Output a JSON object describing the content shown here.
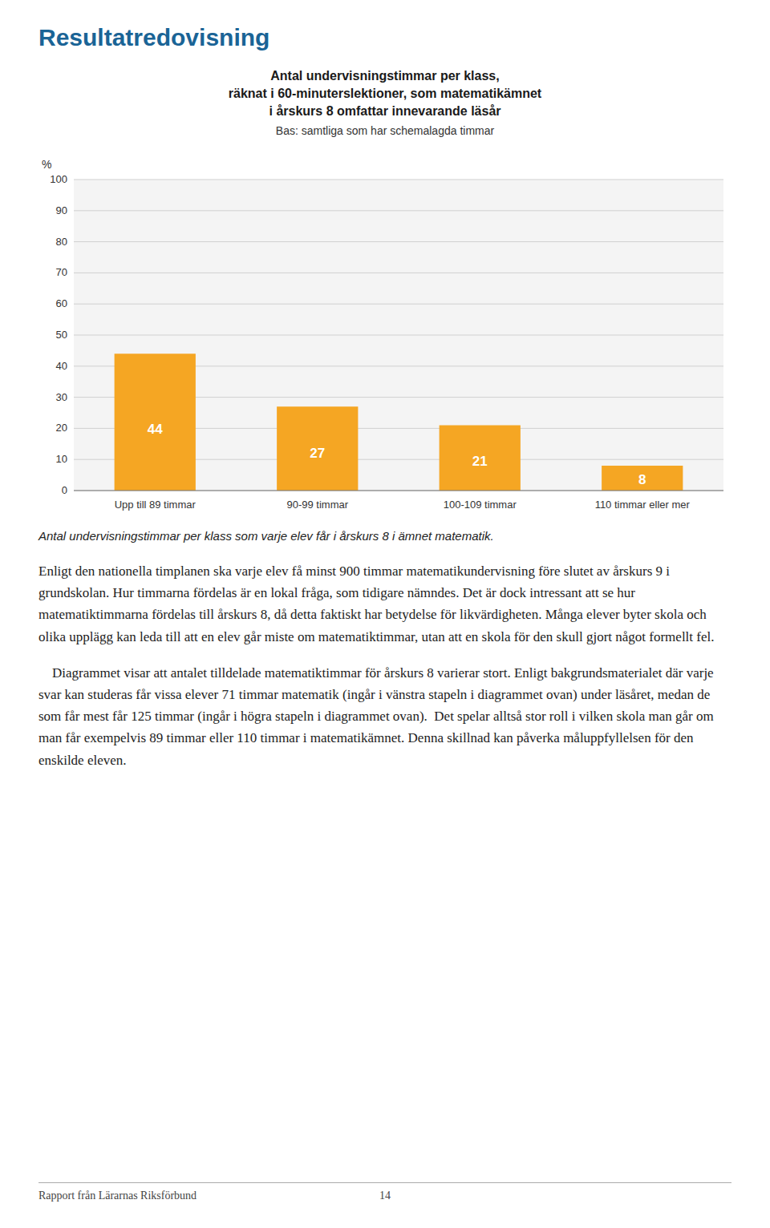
{
  "page_title": "Resultatredovisning",
  "chart_data": {
    "type": "bar",
    "title": [
      "Antal undervisningstimmar per klass,",
      "räknat i 60-minuterslektioner, som matematikämnet",
      "i årskurs 8 omfattar innevarande läsår"
    ],
    "subtitle": "Bas: samtliga som har schemalagda timmar",
    "ylabel": "%",
    "categories": [
      "Upp till 89 timmar",
      "90-99 timmar",
      "100-109 timmar",
      "110 timmar eller mer"
    ],
    "values": [
      44,
      27,
      21,
      8
    ],
    "color": "#F5A623",
    "ylim": [
      0,
      100
    ],
    "yticks": [
      0,
      10,
      20,
      30,
      40,
      50,
      60,
      70,
      80,
      90,
      100
    ],
    "grid": true,
    "data_labels": true
  },
  "caption": "Antal undervisningstimmar per klass som varje elev får i årskurs 8 i ämnet matematik.",
  "paragraphs": [
    "Enligt den nationella timplanen ska varje elev få minst 900 timmar matematikundervisning före slutet av årskurs 9 i grundskolan. Hur timmarna fördelas är en lokal fråga, som tidigare nämndes. Det är dock intressant att se hur matematiktimmarna fördelas till årskurs 8, då detta faktiskt har betydelse för likvärdigheten. Många elever byter skola och olika upplägg kan leda till att en elev går miste om matematiktimmar, utan att en skola för den skull gjort något formellt fel.",
    "    Diagrammet visar att antalet tilldelade matematiktimmar för årskurs 8 varierar stort. Enligt bakgrundsmaterialet där varje svar kan studeras får vissa elever 71 timmar matematik (ingår i vänstra stapeln i diagrammet ovan) under läsåret, medan de som får mest får 125 timmar (ingår i högra stapeln i diagrammet ovan).  Det spelar alltså stor roll i vilken skola man går om man får exempelvis 89 timmar eller 110 timmar i matematikämnet. Denna skillnad kan påverka måluppfyllelsen för den enskilde eleven."
  ],
  "footer_left": "Rapport från Lärarnas Riksförbund",
  "footer_right": "14"
}
